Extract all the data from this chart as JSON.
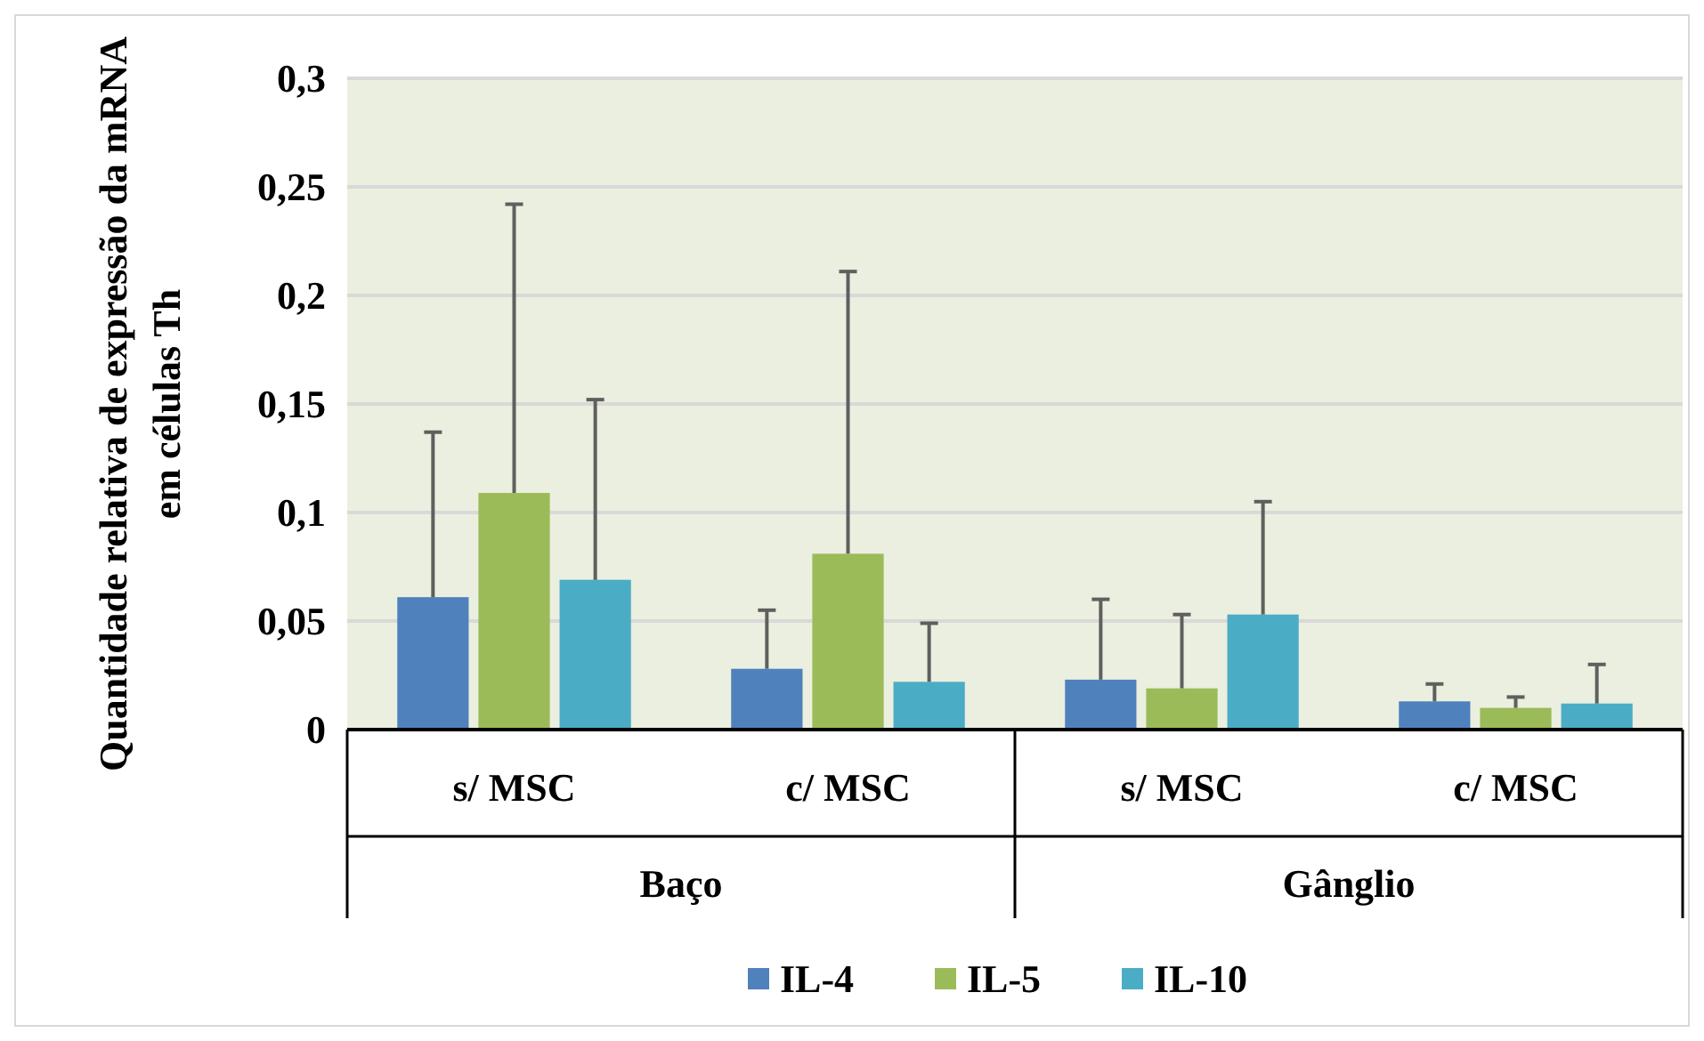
{
  "chart_data": {
    "type": "bar",
    "ylabel": "Quantidade relativa de expressão da mRNA em células Th",
    "categories": [
      "s/ MSC",
      "c/ MSC",
      "s/ MSC",
      "c/ MSC"
    ],
    "annotations": [
      "Baço",
      "Gânglio"
    ],
    "series": [
      {
        "name": "IL-4",
        "color": "#4f81bd",
        "values": [
          0.061,
          0.028,
          0.023,
          0.013
        ],
        "errors": [
          [
            0.061,
            0.137
          ],
          [
            0.028,
            0.055
          ],
          [
            0.023,
            0.06
          ],
          [
            0.013,
            0.021
          ]
        ]
      },
      {
        "name": "IL-5",
        "color": "#9bbb59",
        "values": [
          0.109,
          0.081,
          0.019,
          0.01
        ],
        "errors": [
          [
            0.109,
            0.242
          ],
          [
            0.081,
            0.211
          ],
          [
            0.019,
            0.053
          ],
          [
            0.01,
            0.015
          ]
        ]
      },
      {
        "name": "IL-10",
        "color": "#4bacc6",
        "values": [
          0.069,
          0.022,
          0.053,
          0.012
        ],
        "errors": [
          [
            0.069,
            0.152
          ],
          [
            0.022,
            0.049
          ],
          [
            0.053,
            0.105
          ],
          [
            0.012,
            0.03
          ]
        ]
      }
    ],
    "ylim": [
      0,
      0.3
    ],
    "yticks": [
      {
        "value": 0,
        "label": "0"
      },
      {
        "value": 0.05,
        "label": "0,05"
      },
      {
        "value": 0.1,
        "label": "0,1"
      },
      {
        "value": 0.15,
        "label": "0,15"
      },
      {
        "value": 0.2,
        "label": "0,2"
      },
      {
        "value": 0.25,
        "label": "0,25"
      },
      {
        "value": 0.3,
        "label": "0,3"
      }
    ],
    "grid": "y",
    "legend": "bottom"
  }
}
